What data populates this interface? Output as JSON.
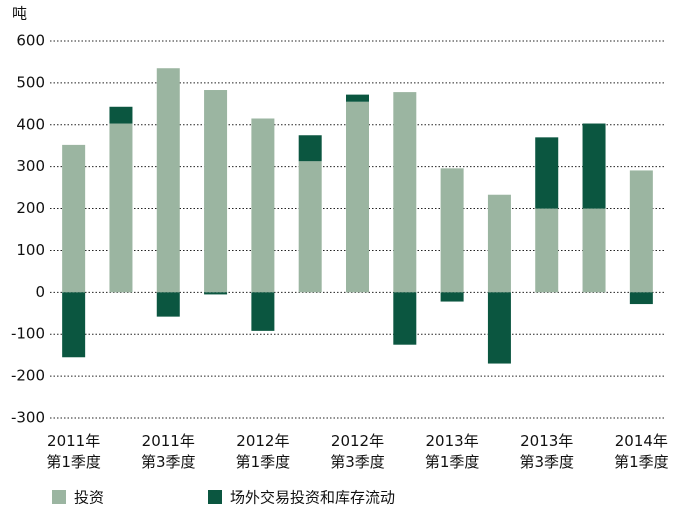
{
  "chart_data": {
    "type": "bar",
    "stacked": true,
    "y_label": "吨",
    "categories": [
      [
        "2011年",
        "第1季度"
      ],
      null,
      [
        "2011年",
        "第3季度"
      ],
      null,
      [
        "2012年",
        "第1季度"
      ],
      null,
      [
        "2012年",
        "第3季度"
      ],
      null,
      [
        "2013年",
        "第1季度"
      ],
      null,
      [
        "2013年",
        "第3季度"
      ],
      null,
      [
        "2014年",
        "第1季度"
      ]
    ],
    "series": [
      {
        "name": "投资",
        "color": "#9bb5a1",
        "values": [
          352,
          403,
          535,
          483,
          415,
          313,
          455,
          478,
          296,
          233,
          200,
          200,
          291
        ]
      },
      {
        "name": "场外交易投资和库存流动",
        "color": "#0b5640",
        "values": [
          -155,
          40,
          -58,
          -5,
          -92,
          62,
          17,
          -125,
          -22,
          -170,
          170,
          203,
          -28
        ]
      }
    ],
    "ylim": [
      -300,
      600
    ],
    "yticks": [
      -300,
      -200,
      -100,
      0,
      100,
      200,
      300,
      400,
      500,
      600
    ],
    "grid": true,
    "legend": "bottom"
  }
}
